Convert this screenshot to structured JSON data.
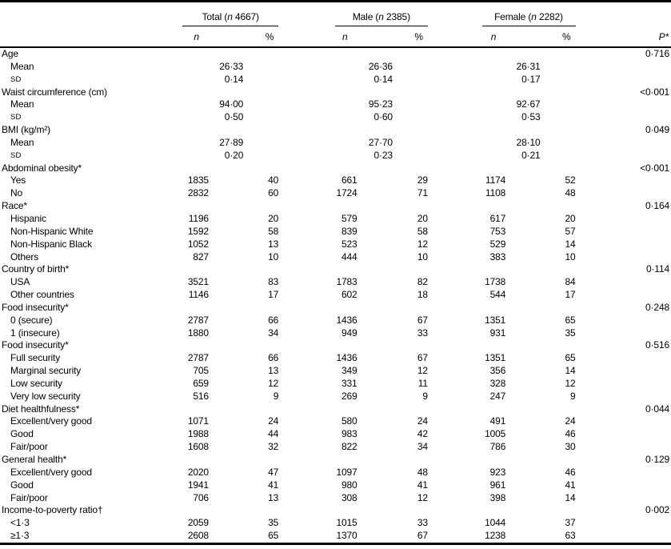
{
  "table": {
    "groups": [
      {
        "prefix": "Total (",
        "n_italic": "n",
        "suffix": " 4667)"
      },
      {
        "prefix": "Male (",
        "n_italic": "n",
        "suffix": " 2385)"
      },
      {
        "prefix": "Female (",
        "n_italic": "n",
        "suffix": " 2282)"
      }
    ],
    "subheaders": {
      "n": "n",
      "pct": "%",
      "p_italic": "P",
      "p_after": "*"
    },
    "rows": [
      {
        "type": "section",
        "label": "Age",
        "p": "0·716"
      },
      {
        "type": "stat",
        "label": "Mean",
        "values": [
          "26·33",
          "26·36",
          "26·31"
        ]
      },
      {
        "type": "stat",
        "label": "SD",
        "style": "sd",
        "values": [
          "0·14",
          "0·14",
          "0·17"
        ]
      },
      {
        "type": "section",
        "label": "Waist circumference (cm)",
        "p": "<0·001"
      },
      {
        "type": "stat",
        "label": "Mean",
        "values": [
          "94·00",
          "95·23",
          "92·67"
        ]
      },
      {
        "type": "stat",
        "label": "SD",
        "style": "sd",
        "values": [
          "0·50",
          "0·60",
          "0·53"
        ]
      },
      {
        "type": "section",
        "label": "BMI (kg/m²)",
        "p": "0·049"
      },
      {
        "type": "stat",
        "label": "Mean",
        "values": [
          "27·89",
          "27·70",
          "28·10"
        ]
      },
      {
        "type": "stat",
        "label": "SD",
        "style": "sd",
        "values": [
          "0·20",
          "0·23",
          "0·21"
        ]
      },
      {
        "type": "section",
        "label": "Abdominal obesity*",
        "p": "<0·001"
      },
      {
        "type": "data",
        "label": "Yes",
        "values": [
          "1835",
          "40",
          "661",
          "29",
          "1174",
          "52"
        ]
      },
      {
        "type": "data",
        "label": "No",
        "values": [
          "2832",
          "60",
          "1724",
          "71",
          "1108",
          "48"
        ]
      },
      {
        "type": "section",
        "label": "Race*",
        "p": "0·164"
      },
      {
        "type": "data",
        "label": "Hispanic",
        "values": [
          "1196",
          "20",
          "579",
          "20",
          "617",
          "20"
        ]
      },
      {
        "type": "data",
        "label": "Non-Hispanic White",
        "values": [
          "1592",
          "58",
          "839",
          "58",
          "753",
          "57"
        ]
      },
      {
        "type": "data",
        "label": "Non-Hispanic Black",
        "values": [
          "1052",
          "13",
          "523",
          "12",
          "529",
          "14"
        ]
      },
      {
        "type": "data",
        "label": "Others",
        "values": [
          "827",
          "10",
          "444",
          "10",
          "383",
          "10"
        ]
      },
      {
        "type": "section",
        "label": "Country of birth*",
        "p": "0·114"
      },
      {
        "type": "data",
        "label": "USA",
        "values": [
          "3521",
          "83",
          "1783",
          "82",
          "1738",
          "84"
        ]
      },
      {
        "type": "data",
        "label": "Other countries",
        "values": [
          "1146",
          "17",
          "602",
          "18",
          "544",
          "17"
        ]
      },
      {
        "type": "section",
        "label": "Food insecurity*",
        "p": "0·248"
      },
      {
        "type": "data",
        "label": "0 (secure)",
        "values": [
          "2787",
          "66",
          "1436",
          "67",
          "1351",
          "65"
        ]
      },
      {
        "type": "data",
        "label": "1 (insecure)",
        "values": [
          "1880",
          "34",
          "949",
          "33",
          "931",
          "35"
        ]
      },
      {
        "type": "section",
        "label": "Food insecurity*",
        "p": "0·516"
      },
      {
        "type": "data",
        "label": "Full security",
        "values": [
          "2787",
          "66",
          "1436",
          "67",
          "1351",
          "65"
        ]
      },
      {
        "type": "data",
        "label": "Marginal security",
        "values": [
          "705",
          "13",
          "349",
          "12",
          "356",
          "14"
        ]
      },
      {
        "type": "data",
        "label": "Low security",
        "values": [
          "659",
          "12",
          "331",
          "11",
          "328",
          "12"
        ]
      },
      {
        "type": "data",
        "label": "Very low security",
        "values": [
          "516",
          "9",
          "269",
          "9",
          "247",
          "9"
        ]
      },
      {
        "type": "section",
        "label": "Diet healthfulness*",
        "p": "0·044"
      },
      {
        "type": "data",
        "label": "Excellent/very good",
        "values": [
          "1071",
          "24",
          "580",
          "24",
          "491",
          "24"
        ]
      },
      {
        "type": "data",
        "label": "Good",
        "values": [
          "1988",
          "44",
          "983",
          "42",
          "1005",
          "46"
        ]
      },
      {
        "type": "data",
        "label": "Fair/poor",
        "values": [
          "1608",
          "32",
          "822",
          "34",
          "786",
          "30"
        ]
      },
      {
        "type": "section",
        "label": "General health*",
        "p": "0·129"
      },
      {
        "type": "data",
        "label": "Excellent/very good",
        "values": [
          "2020",
          "47",
          "1097",
          "48",
          "923",
          "46"
        ]
      },
      {
        "type": "data",
        "label": "Good",
        "values": [
          "1941",
          "41",
          "980",
          "41",
          "961",
          "41"
        ]
      },
      {
        "type": "data",
        "label": "Fair/poor",
        "values": [
          "706",
          "13",
          "308",
          "12",
          "398",
          "14"
        ]
      },
      {
        "type": "section",
        "label": "Income-to-poverty ratio†",
        "p": "0·002"
      },
      {
        "type": "data",
        "label": "<1·3",
        "values": [
          "2059",
          "35",
          "1015",
          "33",
          "1044",
          "37"
        ]
      },
      {
        "type": "data",
        "label": "≥1·3",
        "values": [
          "2608",
          "65",
          "1370",
          "67",
          "1238",
          "63"
        ]
      }
    ]
  }
}
